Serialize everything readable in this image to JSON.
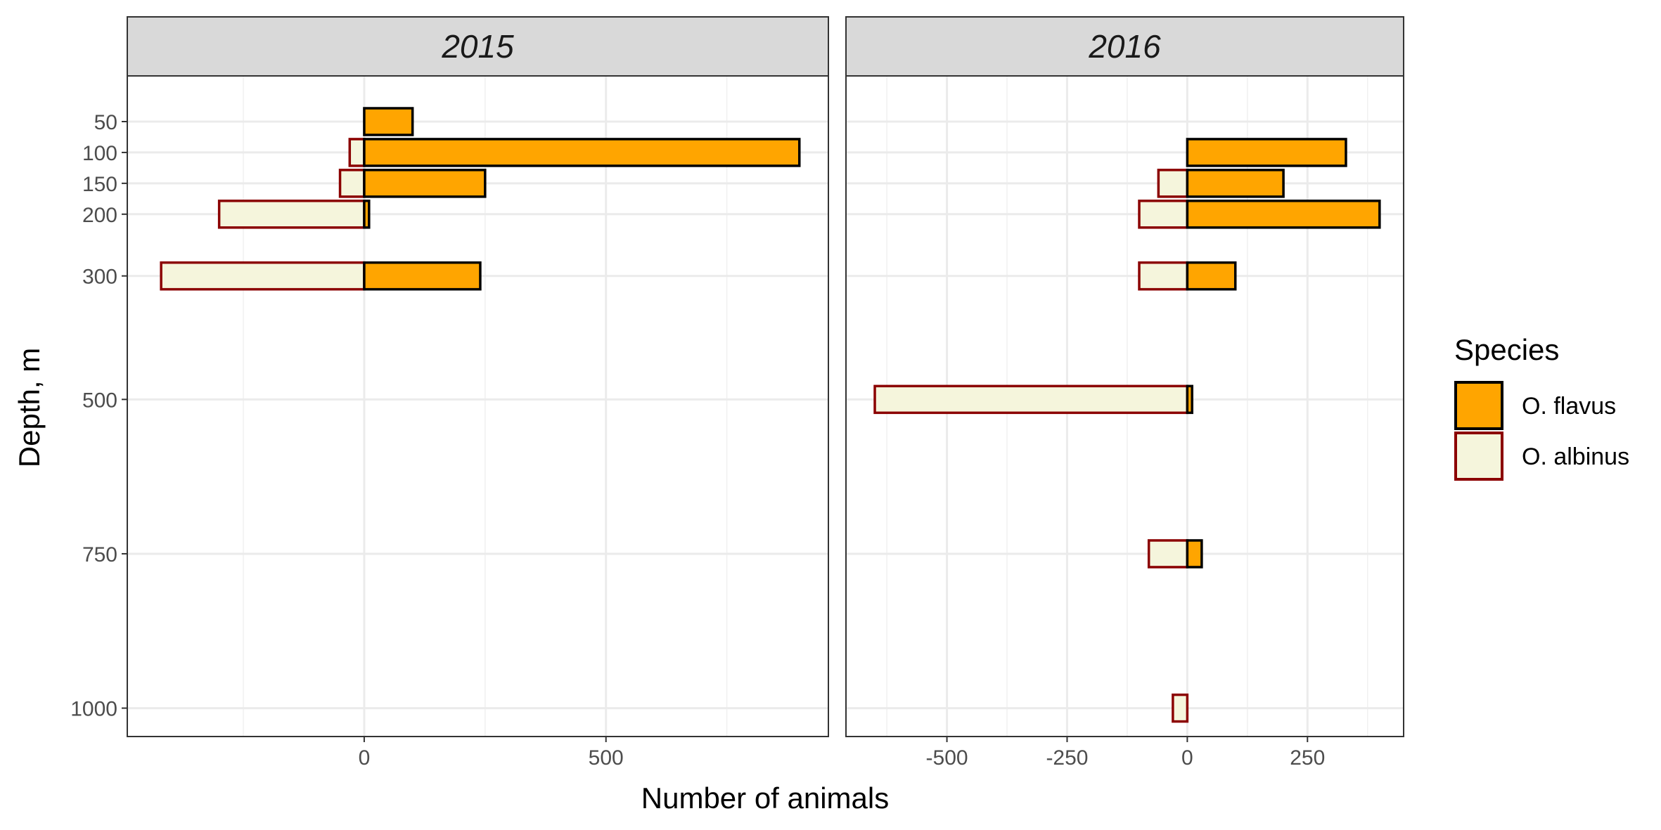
{
  "chart_data": {
    "type": "bar",
    "orientation": "horizontal",
    "xlabel": "Number of animals",
    "ylabel": "Depth, m",
    "y_ticks": [
      50,
      100,
      150,
      200,
      300,
      500,
      750,
      1000
    ],
    "y_range": [
      -24,
      1046
    ],
    "legend": {
      "title": "Species",
      "position": "right",
      "entries": [
        {
          "name": "O. flavus",
          "fill": "#FFA500",
          "stroke": "#000000"
        },
        {
          "name": "O. albinus",
          "fill": "#F5F5DC",
          "stroke": "#8B0000"
        }
      ]
    },
    "grid": true,
    "panels": [
      {
        "strip": "2015",
        "xlim": [
          -490,
          960
        ],
        "x_ticks": [
          0,
          500
        ],
        "x_tick_labels": [
          "0",
          "500"
        ],
        "x_minor": [
          -250,
          250,
          750
        ],
        "series": [
          {
            "name": "O. flavus",
            "bars": [
              {
                "depth": 50,
                "value": 100
              },
              {
                "depth": 100,
                "value": 900
              },
              {
                "depth": 150,
                "value": 250
              },
              {
                "depth": 200,
                "value": 10
              },
              {
                "depth": 300,
                "value": 240
              }
            ]
          },
          {
            "name": "O. albinus",
            "bars": [
              {
                "depth": 100,
                "value": -30
              },
              {
                "depth": 150,
                "value": -50
              },
              {
                "depth": 200,
                "value": -300
              },
              {
                "depth": 300,
                "value": -420
              }
            ]
          }
        ]
      },
      {
        "strip": "2016",
        "xlim": [
          -710,
          450
        ],
        "x_ticks": [
          -500,
          -250,
          0,
          250
        ],
        "x_tick_labels": [
          "-500",
          "-250",
          "0",
          "250"
        ],
        "x_minor": [
          -625,
          -375,
          -125,
          125,
          375
        ],
        "series": [
          {
            "name": "O. flavus",
            "bars": [
              {
                "depth": 100,
                "value": 330
              },
              {
                "depth": 150,
                "value": 200
              },
              {
                "depth": 200,
                "value": 400
              },
              {
                "depth": 300,
                "value": 100
              },
              {
                "depth": 500,
                "value": 10
              },
              {
                "depth": 750,
                "value": 30
              }
            ]
          },
          {
            "name": "O. albinus",
            "bars": [
              {
                "depth": 150,
                "value": -60
              },
              {
                "depth": 200,
                "value": -100
              },
              {
                "depth": 300,
                "value": -100
              },
              {
                "depth": 500,
                "value": -650
              },
              {
                "depth": 750,
                "value": -80
              },
              {
                "depth": 1000,
                "value": -30
              }
            ]
          }
        ]
      }
    ]
  }
}
